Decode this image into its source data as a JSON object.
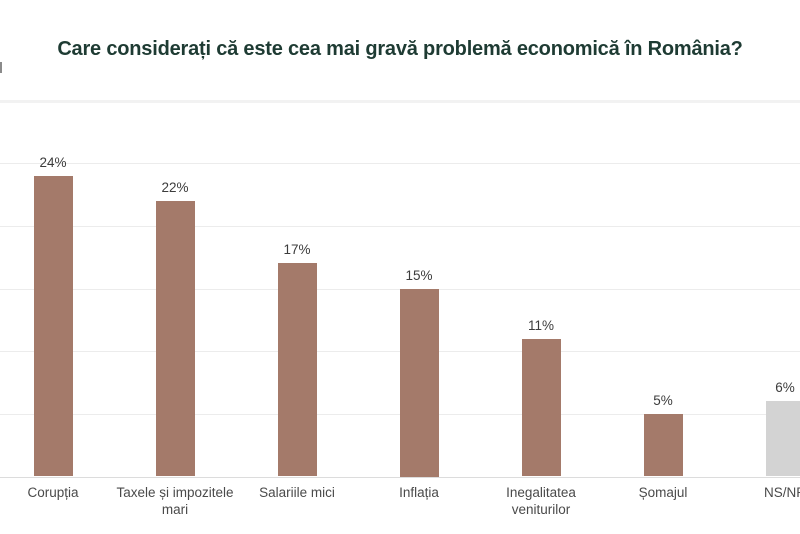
{
  "chart_data": {
    "type": "bar",
    "title": "Care considerați că este cea mai gravă problemă economică în România?",
    "categories": [
      "Corupția",
      "Taxele și impozitele\nmari",
      "Salariile mici",
      "Inflația",
      "Inegalitatea\nveniturilor",
      "Șomajul",
      "NS/NR"
    ],
    "values": [
      24,
      22,
      17,
      15,
      11,
      5,
      6
    ],
    "value_labels": [
      "24%",
      "22%",
      "17%",
      "15%",
      "11%",
      "5%",
      "6%"
    ],
    "bar_colors": [
      "#a47a6a",
      "#a47a6a",
      "#a47a6a",
      "#a47a6a",
      "#a47a6a",
      "#a47a6a",
      "#d3d3d3"
    ],
    "xlabel": "",
    "ylabel": "",
    "ylim": [
      0,
      30
    ],
    "gridline_interval": 5,
    "grid": "horizontal gridlines every 5 percent, no y-axis tick labels",
    "legend": "none",
    "layout_note": "last category (NS/NR) is gray and partially cut off at the right edge of the viewport"
  },
  "colors": {
    "title": "#1e3b33",
    "bar": "#a47a6a",
    "bar_no_answer": "#d3d3d3",
    "value_label": "#3c3c3c",
    "category_label": "#4a4a4a",
    "gridline": "#ececec",
    "axis_line": "#dcdcdc",
    "background": "#ffffff"
  }
}
